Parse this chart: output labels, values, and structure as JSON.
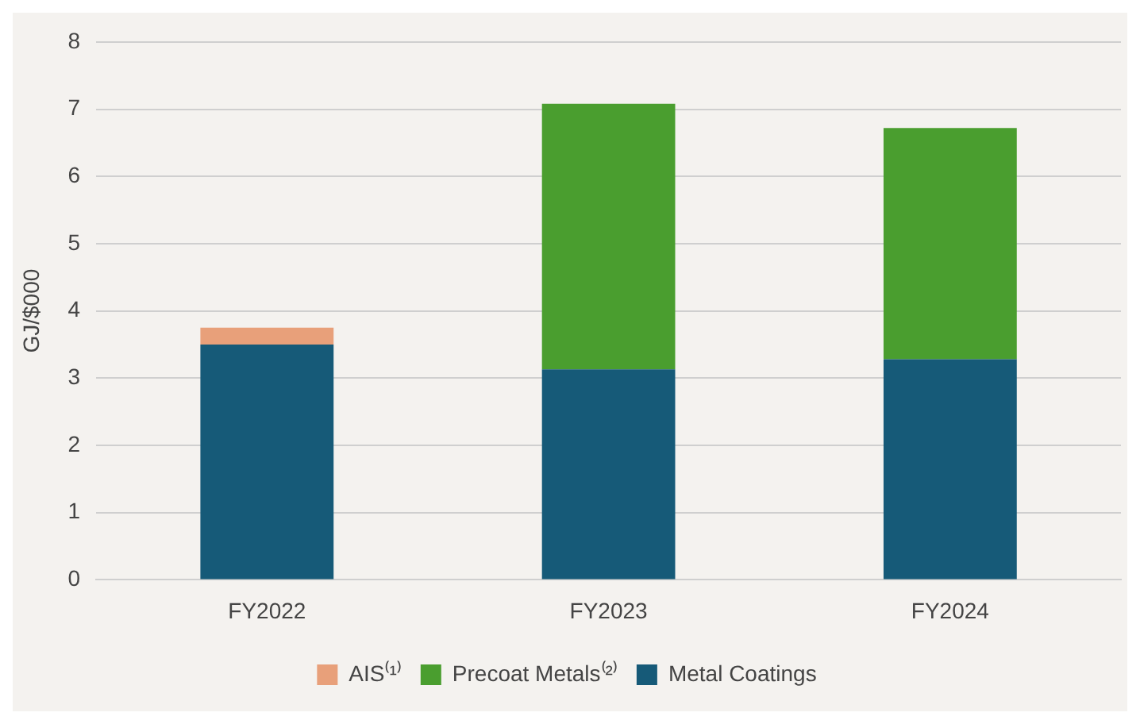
{
  "chart_data": {
    "type": "bar",
    "stacked": true,
    "ylabel": "GJ/$000",
    "categories": [
      "FY2022",
      "FY2023",
      "FY2024"
    ],
    "series": [
      {
        "name": "Metal Coatings",
        "color": "#165a78",
        "values": [
          3.5,
          3.13,
          3.28
        ]
      },
      {
        "name": "Precoat Metals⁽²⁾",
        "color": "#4a9e2f",
        "values": [
          0,
          3.95,
          3.44
        ]
      },
      {
        "name": "AIS⁽¹⁾",
        "color": "#e8a07a",
        "values": [
          0.25,
          0,
          0
        ]
      }
    ],
    "ylim": [
      0,
      8
    ],
    "yticks": [
      0,
      1,
      2,
      3,
      4,
      5,
      6,
      7,
      8
    ],
    "grid": "y",
    "legend": "bottom"
  }
}
